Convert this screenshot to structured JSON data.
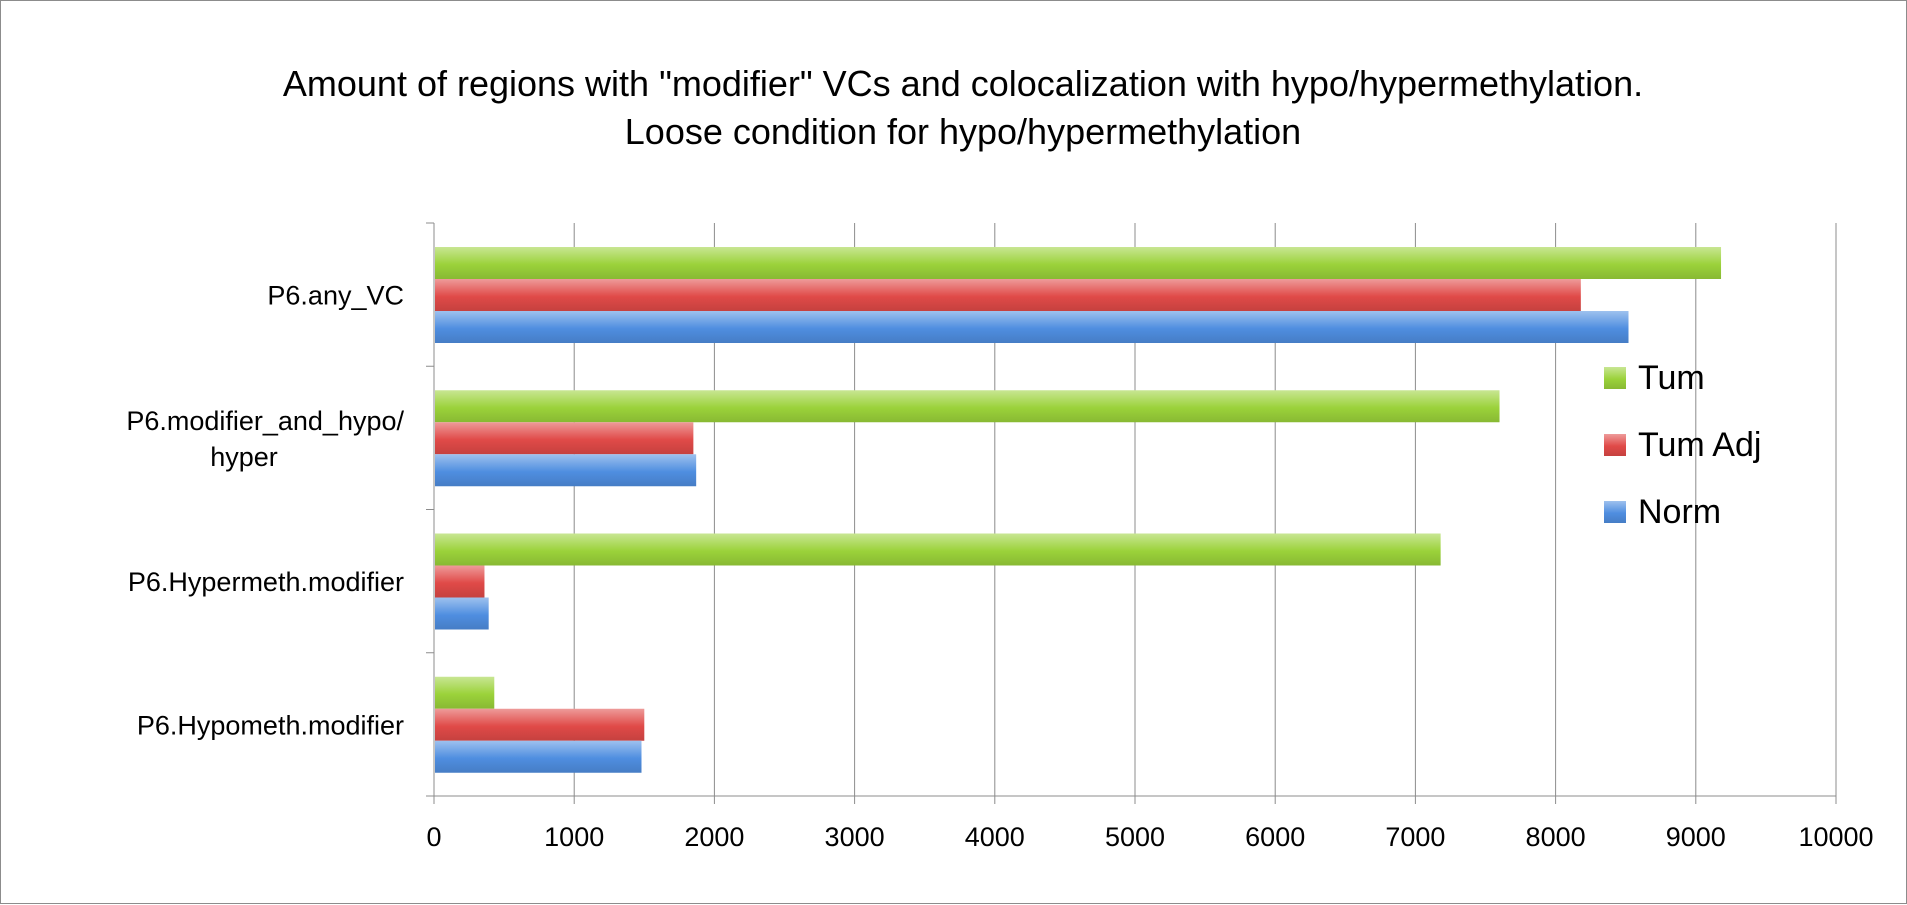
{
  "chart_data": {
    "type": "bar",
    "orientation": "horizontal",
    "title": [
      "Amount of regions with \"modifier\" VCs and colocalization with hypo/hypermethylation.",
      "Loose condition for hypo/hypermethylation"
    ],
    "categories": [
      [
        "P6.any_VC"
      ],
      [
        "P6.modifier_and_hypo/",
        "hyper"
      ],
      [
        "P6.Hypermeth.modifier"
      ],
      [
        "P6.Hypometh.modifier"
      ]
    ],
    "series": [
      {
        "name": "Tum",
        "color": "#9bd23a",
        "values": [
          9180,
          7600,
          7180,
          430
        ]
      },
      {
        "name": "Tum Adj",
        "color": "#e04a48",
        "values": [
          8180,
          1850,
          360,
          1500
        ]
      },
      {
        "name": "Norm",
        "color": "#4f8ee0",
        "values": [
          8520,
          1870,
          390,
          1480
        ]
      }
    ],
    "xlim": [
      0,
      10000
    ],
    "xticks": [
      0,
      1000,
      2000,
      3000,
      4000,
      5000,
      6000,
      7000,
      8000,
      9000,
      10000
    ],
    "grid": "vertical",
    "legend_position": "right"
  }
}
